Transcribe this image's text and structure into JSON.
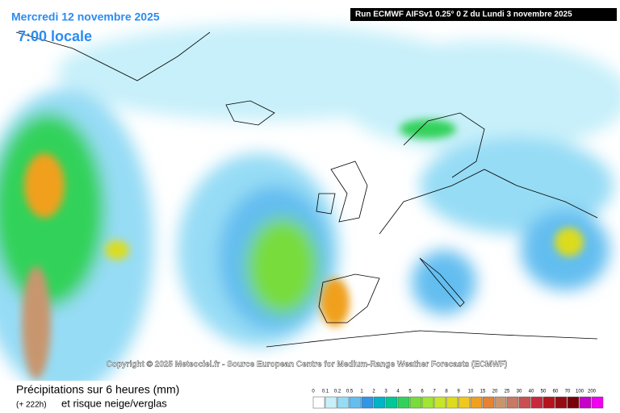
{
  "header": {
    "date": "Mercredi 12 novembre 2025",
    "time": "7:00 locale",
    "run": "Run ECMWF AIFSv1 0.25° 0 Z du Lundi 3 novembre 2025"
  },
  "copyright": "Copyright © 2025 Meteociel.fr - Source European Centre for Medium-Range Weather Forecasts (ECMWF)",
  "footer": {
    "title": "Précipitations sur 6 heures (mm)",
    "lead": "(+ 222h)",
    "subtitle": "et risque neige/verglas"
  },
  "legend": {
    "labels": [
      "0",
      "0.1",
      "0.2",
      "0.5",
      "1",
      "2",
      "3",
      "4",
      "5",
      "6",
      "7",
      "8",
      "9",
      "10",
      "15",
      "20",
      "25",
      "30",
      "40",
      "50",
      "60",
      "70",
      "100",
      "200"
    ],
    "colors": [
      "#ffffff",
      "#c8f0fa",
      "#96dcf5",
      "#64bef0",
      "#3296e6",
      "#00b4c8",
      "#00c896",
      "#32d25a",
      "#78dc3c",
      "#a0e632",
      "#c8e628",
      "#dcdc1e",
      "#f0c81e",
      "#f0a01e",
      "#e68232",
      "#c8966e",
      "#c87864",
      "#c85050",
      "#c8283c",
      "#b4141e",
      "#960a14",
      "#78000a",
      "#c800c8",
      "#f000f0"
    ]
  }
}
